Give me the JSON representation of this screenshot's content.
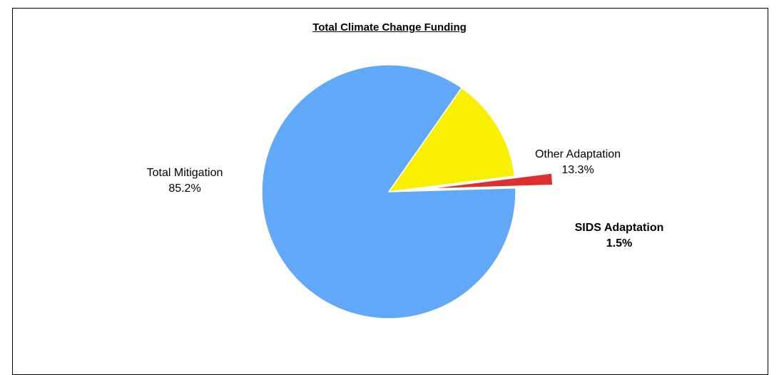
{
  "chart_data": {
    "type": "pie",
    "title": "Total Climate Change Funding",
    "slices": [
      {
        "label": "Total Mitigation",
        "value": 85.2,
        "pct_label": "85.2%",
        "color": "#62a8f8"
      },
      {
        "label": "Other Adaptation",
        "value": 13.3,
        "pct_label": "13.3%",
        "color": "#f8f000"
      },
      {
        "label": "SIDS Adaptation",
        "value": 1.5,
        "pct_label": "1.5%",
        "color": "#de2e30",
        "exploded": true,
        "bold_label": true
      }
    ]
  }
}
